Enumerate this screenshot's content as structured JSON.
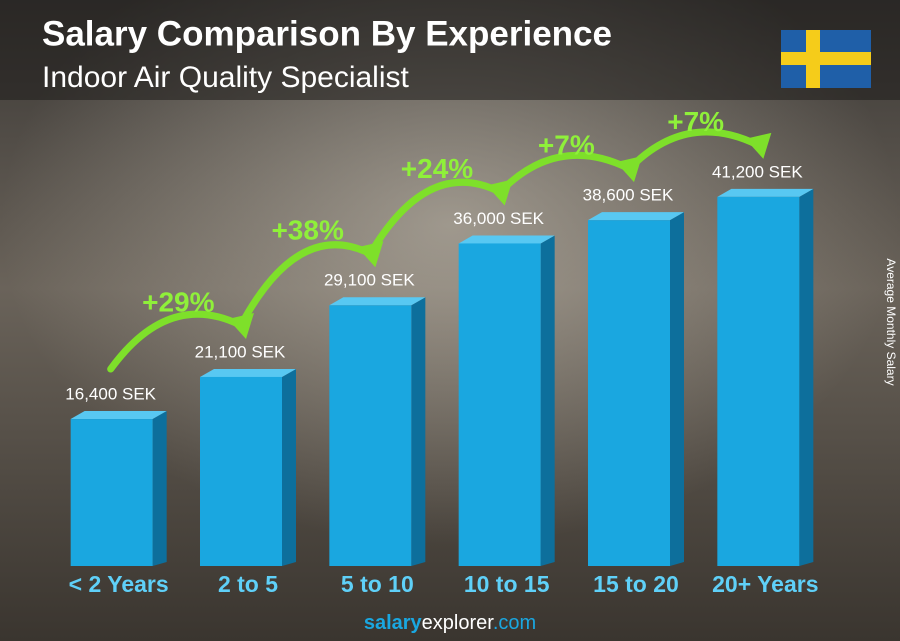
{
  "chart_data": {
    "type": "bar3d",
    "title": "Salary Comparison By Experience",
    "subtitle": "Indoor Air Quality Specialist",
    "y_label": "Average Monthly Salary",
    "categories": [
      "< 2 Years",
      "2 to 5",
      "5 to 10",
      "10 to 15",
      "15 to 20",
      "20+ Years"
    ],
    "values": [
      16400,
      21100,
      29100,
      36000,
      38600,
      41200
    ],
    "value_labels": [
      "16,400 SEK",
      "21,100 SEK",
      "29,100 SEK",
      "36,000 SEK",
      "38,600 SEK",
      "41,200 SEK"
    ],
    "annotations": [
      "+29%",
      "+38%",
      "+24%",
      "+7%",
      "+7%"
    ],
    "color": "#1aa7e0",
    "ylim": [
      0,
      50000
    ],
    "footer": [
      "salary",
      "explorer",
      ".com"
    ]
  }
}
